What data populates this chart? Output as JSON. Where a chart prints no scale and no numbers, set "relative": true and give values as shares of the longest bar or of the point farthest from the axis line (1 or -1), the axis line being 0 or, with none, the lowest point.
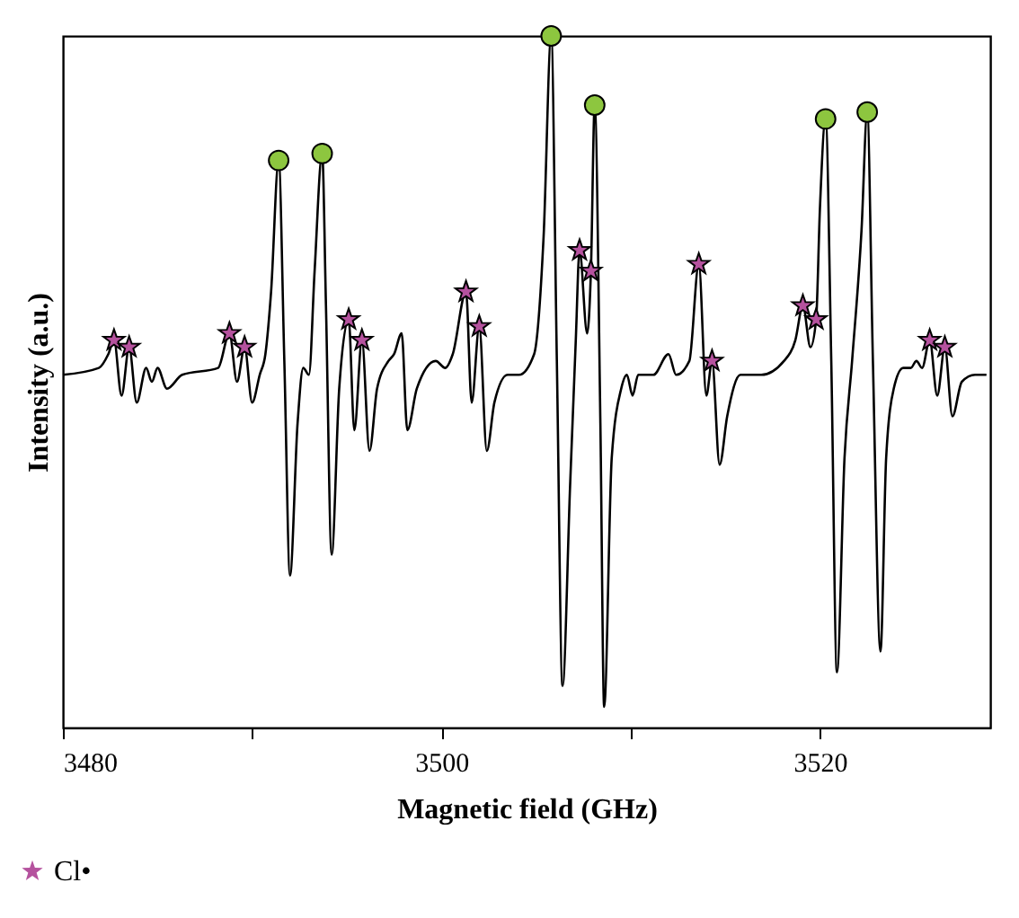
{
  "chart_data": {
    "type": "line",
    "xlabel": "Magnetic field (GHz)",
    "ylabel": "Intensity (a.u.)",
    "relative": true,
    "xlim": [
      3480,
      3529
    ],
    "xticks": [
      3480,
      {
        "value": 3490,
        "label": null
      },
      3500,
      {
        "value": 3510,
        "label": null
      },
      3520
    ],
    "legend": "bottom left",
    "series": [
      {
        "type": "line",
        "color": "#000000",
        "marker": "none",
        "x": [
          3480.0,
          3481.9,
          3482.4,
          3482.7,
          3483.1,
          3483.5,
          3483.9,
          3484.4,
          3484.7,
          3485.0,
          3485.5,
          3486.3,
          3488.2,
          3488.8,
          3489.2,
          3489.6,
          3490.0,
          3490.4,
          3490.7,
          3491.0,
          3491.4,
          3491.7,
          3492.0,
          3492.4,
          3492.7,
          3493.0,
          3493.3,
          3493.7,
          3493.9,
          3494.2,
          3494.6,
          3495.1,
          3495.4,
          3495.8,
          3496.2,
          3496.6,
          3497.2,
          3497.5,
          3497.9,
          3498.2,
          3498.7,
          3499.7,
          3500.2,
          3500.6,
          3501.3,
          3501.6,
          3502.0,
          3502.4,
          3502.8,
          3503.5,
          3504.1,
          3504.9,
          3505.4,
          3505.8,
          3506.1,
          3506.4,
          3506.8,
          3507.1,
          3507.3,
          3507.7,
          3507.9,
          3508.1,
          3508.4,
          3508.6,
          3509.0,
          3509.5,
          3509.8,
          3510.1,
          3510.4,
          3511.2,
          3512.0,
          3512.4,
          3513.1,
          3513.6,
          3514.0,
          3514.3,
          3514.7,
          3515.1,
          3515.8,
          3516.9,
          3518.1,
          3518.7,
          3519.1,
          3519.5,
          3519.8,
          3520.0,
          3520.3,
          3520.6,
          3520.9,
          3521.3,
          3521.7,
          3522.2,
          3522.5,
          3522.8,
          3523.2,
          3523.5,
          3523.9,
          3524.4,
          3524.8,
          3525.1,
          3525.4,
          3525.8,
          3526.2,
          3526.6,
          3527.0,
          3527.5,
          3528.2,
          3528.8
        ],
        "values": [
          0.51,
          0.52,
          0.54,
          0.56,
          0.48,
          0.55,
          0.47,
          0.52,
          0.5,
          0.52,
          0.49,
          0.51,
          0.52,
          0.57,
          0.5,
          0.55,
          0.47,
          0.51,
          0.54,
          0.63,
          0.82,
          0.53,
          0.22,
          0.44,
          0.52,
          0.51,
          0.66,
          0.83,
          0.61,
          0.25,
          0.49,
          0.59,
          0.43,
          0.56,
          0.4,
          0.49,
          0.53,
          0.54,
          0.57,
          0.43,
          0.49,
          0.53,
          0.52,
          0.54,
          0.63,
          0.47,
          0.58,
          0.4,
          0.47,
          0.51,
          0.51,
          0.54,
          0.71,
          1.0,
          0.53,
          0.06,
          0.35,
          0.56,
          0.69,
          0.57,
          0.66,
          0.9,
          0.44,
          0.03,
          0.39,
          0.49,
          0.51,
          0.48,
          0.51,
          0.51,
          0.54,
          0.51,
          0.53,
          0.67,
          0.48,
          0.53,
          0.38,
          0.45,
          0.51,
          0.51,
          0.53,
          0.56,
          0.61,
          0.55,
          0.59,
          0.75,
          0.88,
          0.53,
          0.08,
          0.39,
          0.53,
          0.72,
          0.89,
          0.53,
          0.11,
          0.39,
          0.49,
          0.52,
          0.52,
          0.53,
          0.52,
          0.56,
          0.48,
          0.55,
          0.45,
          0.5,
          0.51,
          0.51
        ]
      },
      {
        "type": "scatter",
        "name": "Cl•",
        "color": "#b5529e",
        "marker": "star",
        "x": [
          3482.7,
          3483.5,
          3488.8,
          3489.6,
          3495.1,
          3495.8,
          3501.3,
          3502.0,
          3507.3,
          3507.9,
          3513.6,
          3514.3,
          3519.1,
          3519.8,
          3525.8,
          3526.6
        ],
        "values": [
          0.56,
          0.55,
          0.57,
          0.55,
          0.59,
          0.56,
          0.63,
          0.58,
          0.69,
          0.66,
          0.67,
          0.53,
          0.61,
          0.59,
          0.56,
          0.55
        ]
      },
      {
        "type": "scatter",
        "color": "#8dc63f",
        "marker": "circle",
        "x": [
          3491.4,
          3493.7,
          3505.8,
          3508.1,
          3520.3,
          3522.5
        ],
        "values": [
          0.82,
          0.83,
          1.0,
          0.9,
          0.88,
          0.89
        ]
      }
    ]
  }
}
